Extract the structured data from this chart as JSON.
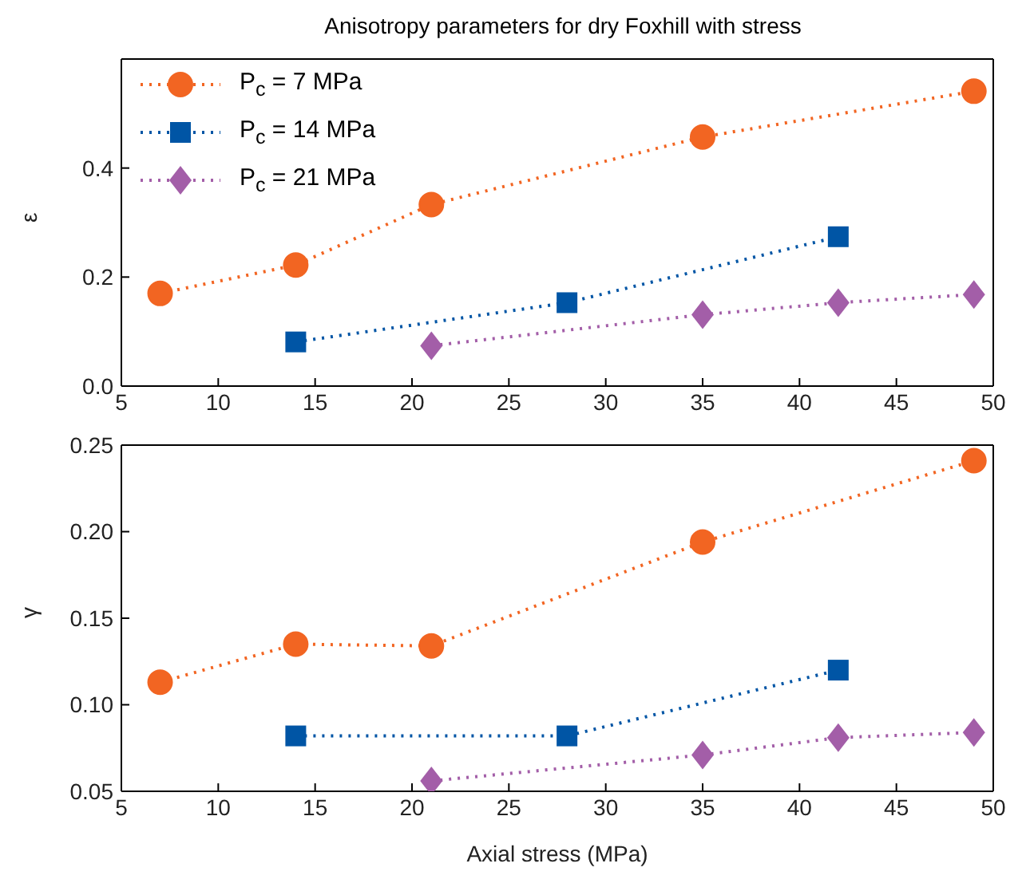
{
  "chart_data": [
    {
      "type": "line",
      "title": "Anisotropy parameters for dry Foxhill with stress",
      "ylabel": "ε",
      "xlim": [
        5,
        50
      ],
      "xticks": [
        5,
        10,
        15,
        20,
        25,
        30,
        35,
        40,
        45,
        50
      ],
      "ylim": [
        0,
        0.6
      ],
      "yticks": [
        {
          "value": 0,
          "label": "0.0"
        },
        {
          "value": 0.2,
          "label": "0.2"
        },
        {
          "value": 0.4,
          "label": "0.4"
        }
      ],
      "legend": "top left",
      "line_style": "dotted",
      "grid": false,
      "series": [
        {
          "name": "P$_{c}$ = 7 MPa",
          "color": "#f26522",
          "marker": "circle",
          "x": [
            7,
            14,
            21,
            35,
            49
          ],
          "values": [
            0.17,
            0.222,
            0.333,
            0.457,
            0.541
          ]
        },
        {
          "name": "P$_{c}$ = 14 MPa",
          "color": "#0055a5",
          "marker": "square",
          "x": [
            14,
            28,
            42
          ],
          "values": [
            0.081,
            0.153,
            0.274
          ]
        },
        {
          "name": "P$_{c}$ = 21 MPa",
          "color": "#a35ea8",
          "marker": "diamond",
          "x": [
            21,
            35,
            42,
            49
          ],
          "values": [
            0.074,
            0.131,
            0.153,
            0.168
          ]
        }
      ]
    },
    {
      "type": "line",
      "xlabel": "Axial stress (MPa)",
      "ylabel": "γ",
      "xlim": [
        5,
        50
      ],
      "xticks": [
        5,
        10,
        15,
        20,
        25,
        30,
        35,
        40,
        45,
        50
      ],
      "ylim": [
        0.05,
        0.25
      ],
      "yticks": [
        {
          "value": 0.05,
          "label": "0.05"
        },
        {
          "value": 0.1,
          "label": "0.10"
        },
        {
          "value": 0.15,
          "label": "0.15"
        },
        {
          "value": 0.2,
          "label": "0.20"
        },
        {
          "value": 0.25,
          "label": "0.25"
        }
      ],
      "line_style": "dotted",
      "grid": false,
      "series": [
        {
          "color": "#f26522",
          "marker": "circle",
          "x": [
            7,
            14,
            21,
            35,
            49
          ],
          "values": [
            0.113,
            0.135,
            0.134,
            0.194,
            0.241
          ]
        },
        {
          "color": "#0055a5",
          "marker": "square",
          "x": [
            14,
            28,
            42
          ],
          "values": [
            0.082,
            0.082,
            0.12
          ]
        },
        {
          "color": "#a35ea8",
          "marker": "diamond",
          "x": [
            21,
            35,
            42,
            49
          ],
          "values": [
            0.056,
            0.071,
            0.081,
            0.084
          ]
        }
      ]
    }
  ]
}
